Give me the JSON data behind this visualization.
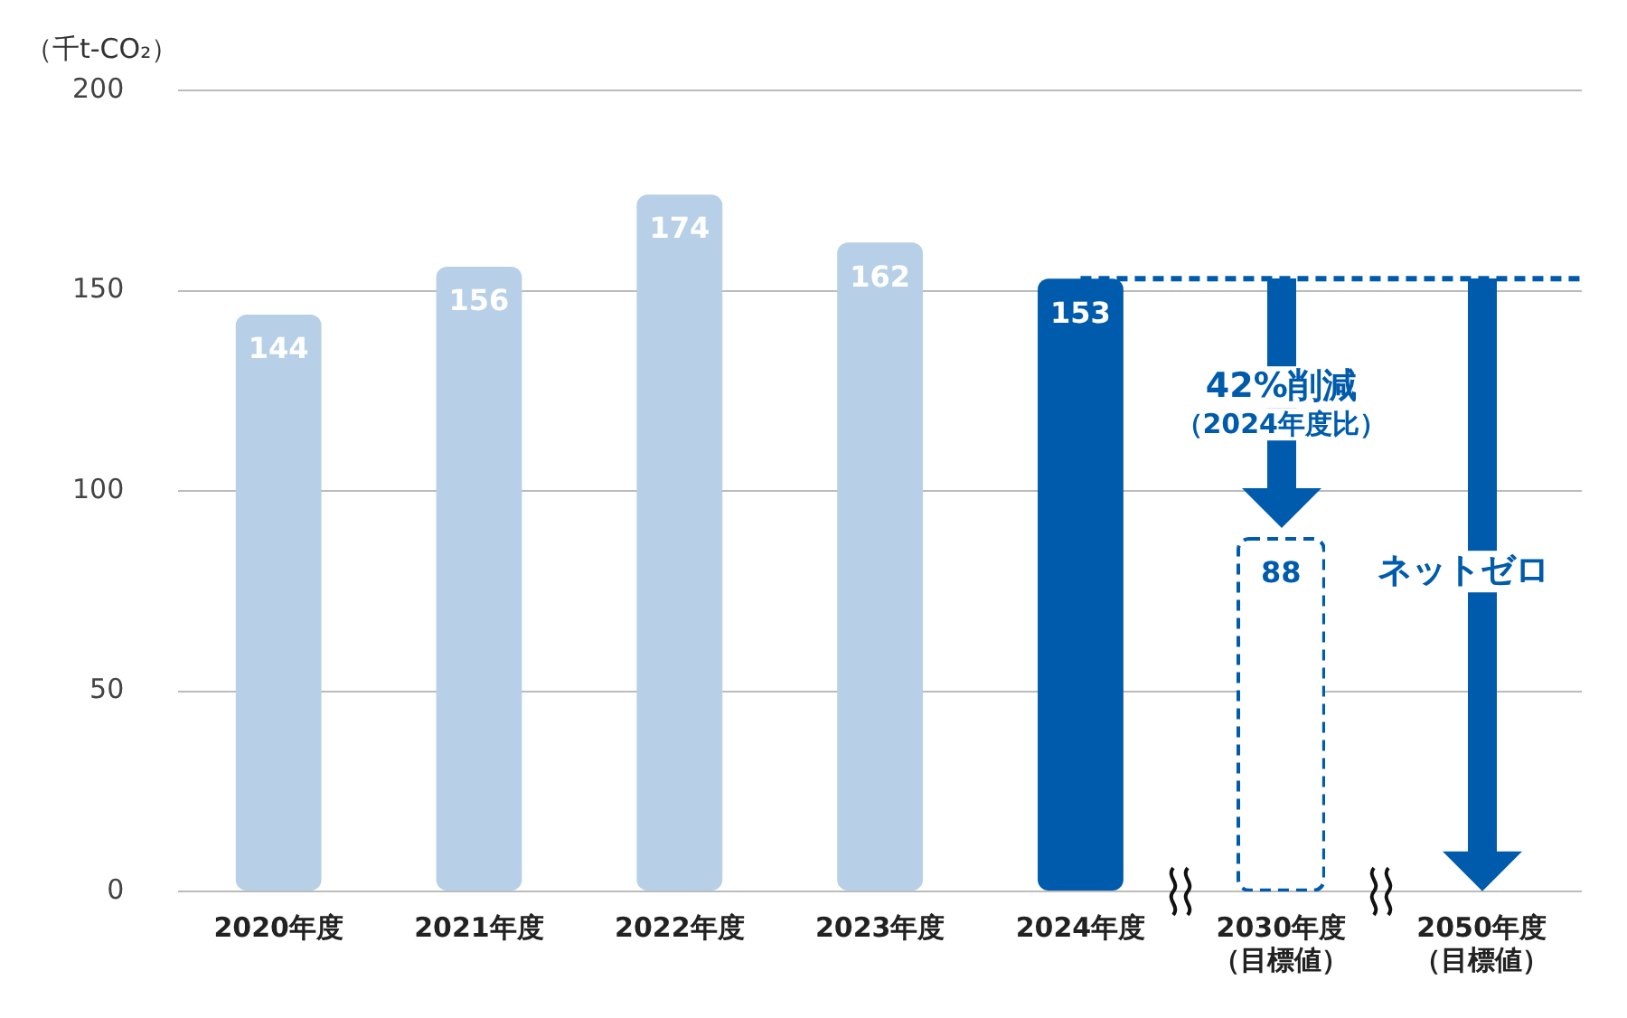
{
  "chart_data": {
    "type": "bar",
    "ylabel": "（千t-CO₂）",
    "categories": [
      "2020年度",
      "2021年度",
      "2022年度",
      "2023年度",
      "2024年度",
      "2030年度（目標値）",
      "2050年度（目標値）"
    ],
    "series": [
      {
        "values": [
          144,
          156,
          174,
          162,
          153,
          null,
          null
        ],
        "colors": [
          "#b7d0e8",
          "#b7d0e8",
          "#b7d0e8",
          "#b7d0e8",
          "#005bac",
          null,
          null
        ],
        "value_labels": [
          "144",
          "156",
          "174",
          "162",
          "153",
          null,
          null
        ]
      },
      {
        "values": [
          null,
          null,
          null,
          null,
          null,
          88,
          0
        ],
        "color": "#ffffff",
        "line_style": "dashed",
        "value_labels": [
          null,
          null,
          null,
          null,
          null,
          "88",
          null
        ]
      }
    ],
    "ylim": [
      0,
      200
    ],
    "yticks": [
      0,
      50,
      100,
      150,
      200
    ],
    "grid": "y",
    "legend": false,
    "ref_lines": [
      {
        "axis": "y",
        "value": 153,
        "color": "#005bac",
        "line_style": "dashed"
      }
    ],
    "annotations": [
      "42%削減（2024年度比）",
      "ネットゼロ"
    ]
  }
}
